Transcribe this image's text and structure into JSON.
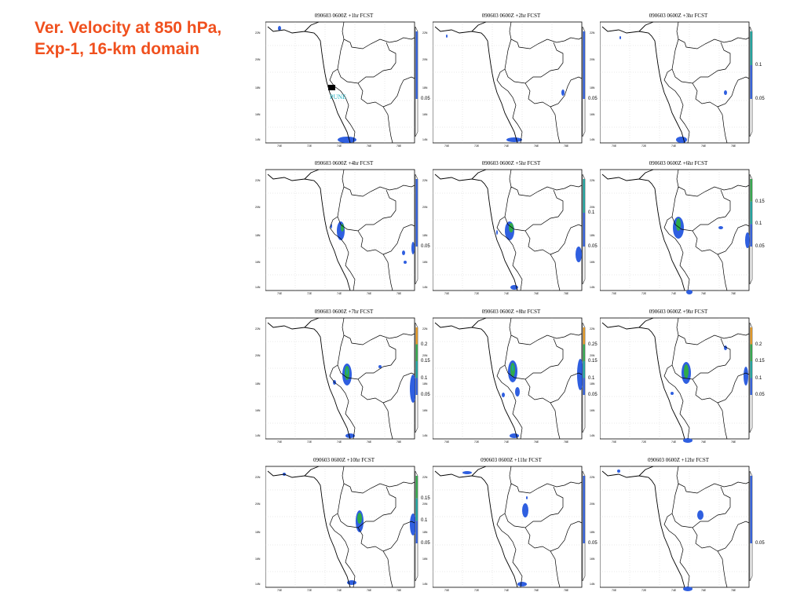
{
  "slide_title": "Ver. Velocity at 850 hPa, Exp-1, 16-km domain",
  "lat_labels": [
    "22N",
    "20N",
    "18N",
    "16N",
    "14N"
  ],
  "lon_labels": [
    "70E",
    "72E",
    "74E",
    "76E",
    "78E"
  ],
  "city_label": "PUNE",
  "colors": {
    "title": "#f0501e",
    "blue": "#2f5fe0",
    "green": "#2eaa4a",
    "teal": "#1aa6a0",
    "orange": "#e89a20",
    "pune": "#20b0c0"
  },
  "panels": [
    {
      "title": "090603 0600Z +1hr FCST",
      "levels": [
        "0.05"
      ],
      "show_city": true
    },
    {
      "title": "090603 0600Z +2hr FCST",
      "levels": [
        "0.05"
      ],
      "show_city": false
    },
    {
      "title": "090603 0600Z +3hr FCST",
      "levels": [
        "0.1",
        "0.05"
      ],
      "show_city": false
    },
    {
      "title": "090603 0600Z +4hr FCST",
      "levels": [
        "0.05"
      ],
      "show_city": false
    },
    {
      "title": "090603 0600Z +5hr FCST",
      "levels": [
        "0.1",
        "0.05"
      ],
      "show_city": false
    },
    {
      "title": "090603 0600Z +6hr FCST",
      "levels": [
        "0.15",
        "0.1",
        "0.05"
      ],
      "show_city": false
    },
    {
      "title": "090603 0600Z +7hr FCST",
      "levels": [
        "0.2",
        "0.15",
        "0.1",
        "0.05"
      ],
      "show_city": false
    },
    {
      "title": "090603 0600Z +8hr FCST",
      "levels": [
        "0.25",
        "0.15",
        "0.1",
        "0.05"
      ],
      "show_city": false
    },
    {
      "title": "090603 0600Z +9hr FCST",
      "levels": [
        "0.2",
        "0.15",
        "0.1",
        "0.05"
      ],
      "show_city": false
    },
    {
      "title": "090603 0600Z +10hr FCST",
      "levels": [
        "0.15",
        "0.1",
        "0.05"
      ],
      "show_city": false
    },
    {
      "title": "090603 0600Z +11hr FCST",
      "levels": [
        "0.05"
      ],
      "show_city": false
    },
    {
      "title": "090603 0600Z +12hr FCST",
      "levels": [
        "0.05"
      ],
      "show_city": false
    }
  ]
}
